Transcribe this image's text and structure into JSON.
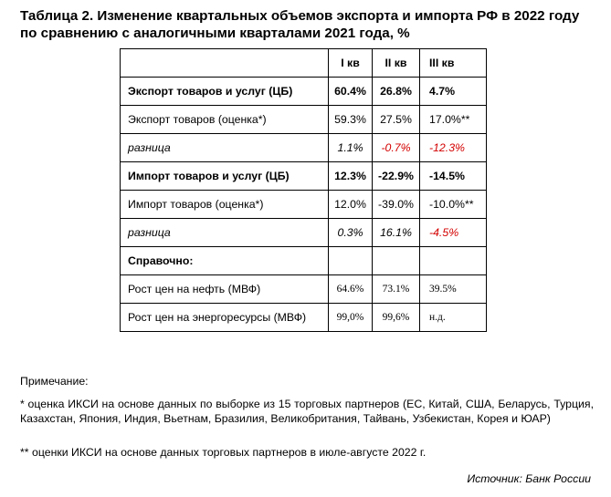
{
  "title": "Таблица 2. Изменение квартальных объемов экспорта и импорта РФ в 2022 году по сравнению с аналогичными кварталами 2021 года, %",
  "table": {
    "headers": [
      "",
      "I кв",
      "II кв",
      "III кв"
    ],
    "rows": [
      {
        "style": "bold",
        "label": "Экспорт товаров и услуг (ЦБ)",
        "values": [
          "60.4%",
          "26.8%",
          "4.7%"
        ],
        "neg": [
          false,
          false,
          false
        ]
      },
      {
        "style": "normal",
        "label": "Экспорт товаров (оценка*)",
        "values": [
          "59.3%",
          "27.5%",
          "17.0%**"
        ],
        "neg": [
          false,
          false,
          false
        ]
      },
      {
        "style": "diff",
        "label": "разница",
        "values": [
          "1.1%",
          "-0.7%",
          "-12.3%"
        ],
        "neg": [
          false,
          true,
          true
        ]
      },
      {
        "style": "bold",
        "label": "Импорт товаров и услуг (ЦБ)",
        "values": [
          "12.3%",
          "-22.9%",
          "-14.5%"
        ],
        "neg": [
          false,
          false,
          false
        ]
      },
      {
        "style": "normal",
        "label": "Импорт товаров (оценка*)",
        "values": [
          "12.0%",
          "-39.0%",
          "-10.0%**"
        ],
        "neg": [
          false,
          false,
          false
        ]
      },
      {
        "style": "diff",
        "label": "разница",
        "values": [
          "0.3%",
          "16.1%",
          "-4.5%"
        ],
        "neg": [
          false,
          false,
          true
        ]
      },
      {
        "style": "bold",
        "label": "Справочно:",
        "values": [
          "",
          "",
          ""
        ],
        "neg": [
          false,
          false,
          false
        ]
      },
      {
        "style": "serif",
        "label": "Рост цен на нефть (МВФ)",
        "values": [
          "64.6%",
          "73.1%",
          "39.5%"
        ],
        "neg": [
          false,
          false,
          false
        ]
      },
      {
        "style": "serif",
        "label": "Рост цен на энергоресурсы (МВФ)",
        "values": [
          "99,0%",
          "99,6%",
          "н.д."
        ],
        "neg": [
          false,
          false,
          false
        ]
      }
    ]
  },
  "notes": {
    "heading": "Примечание:",
    "note1": "* оценка ИКСИ на основе данных по выборке из 15 торговых партнеров (ЕС, Китай, США, Беларусь, Турция, Казахстан, Япония, Индия, Вьетнам, Бразилия, Великобритания, Тайвань, Узбекистан, Корея и ЮАР)",
    "note2": "** оценки ИКСИ на основе данных торговых партнеров в июле-августе 2022 г."
  },
  "source": "Источник: Банк России",
  "colors": {
    "negative": "#d40000",
    "text": "#000000"
  }
}
